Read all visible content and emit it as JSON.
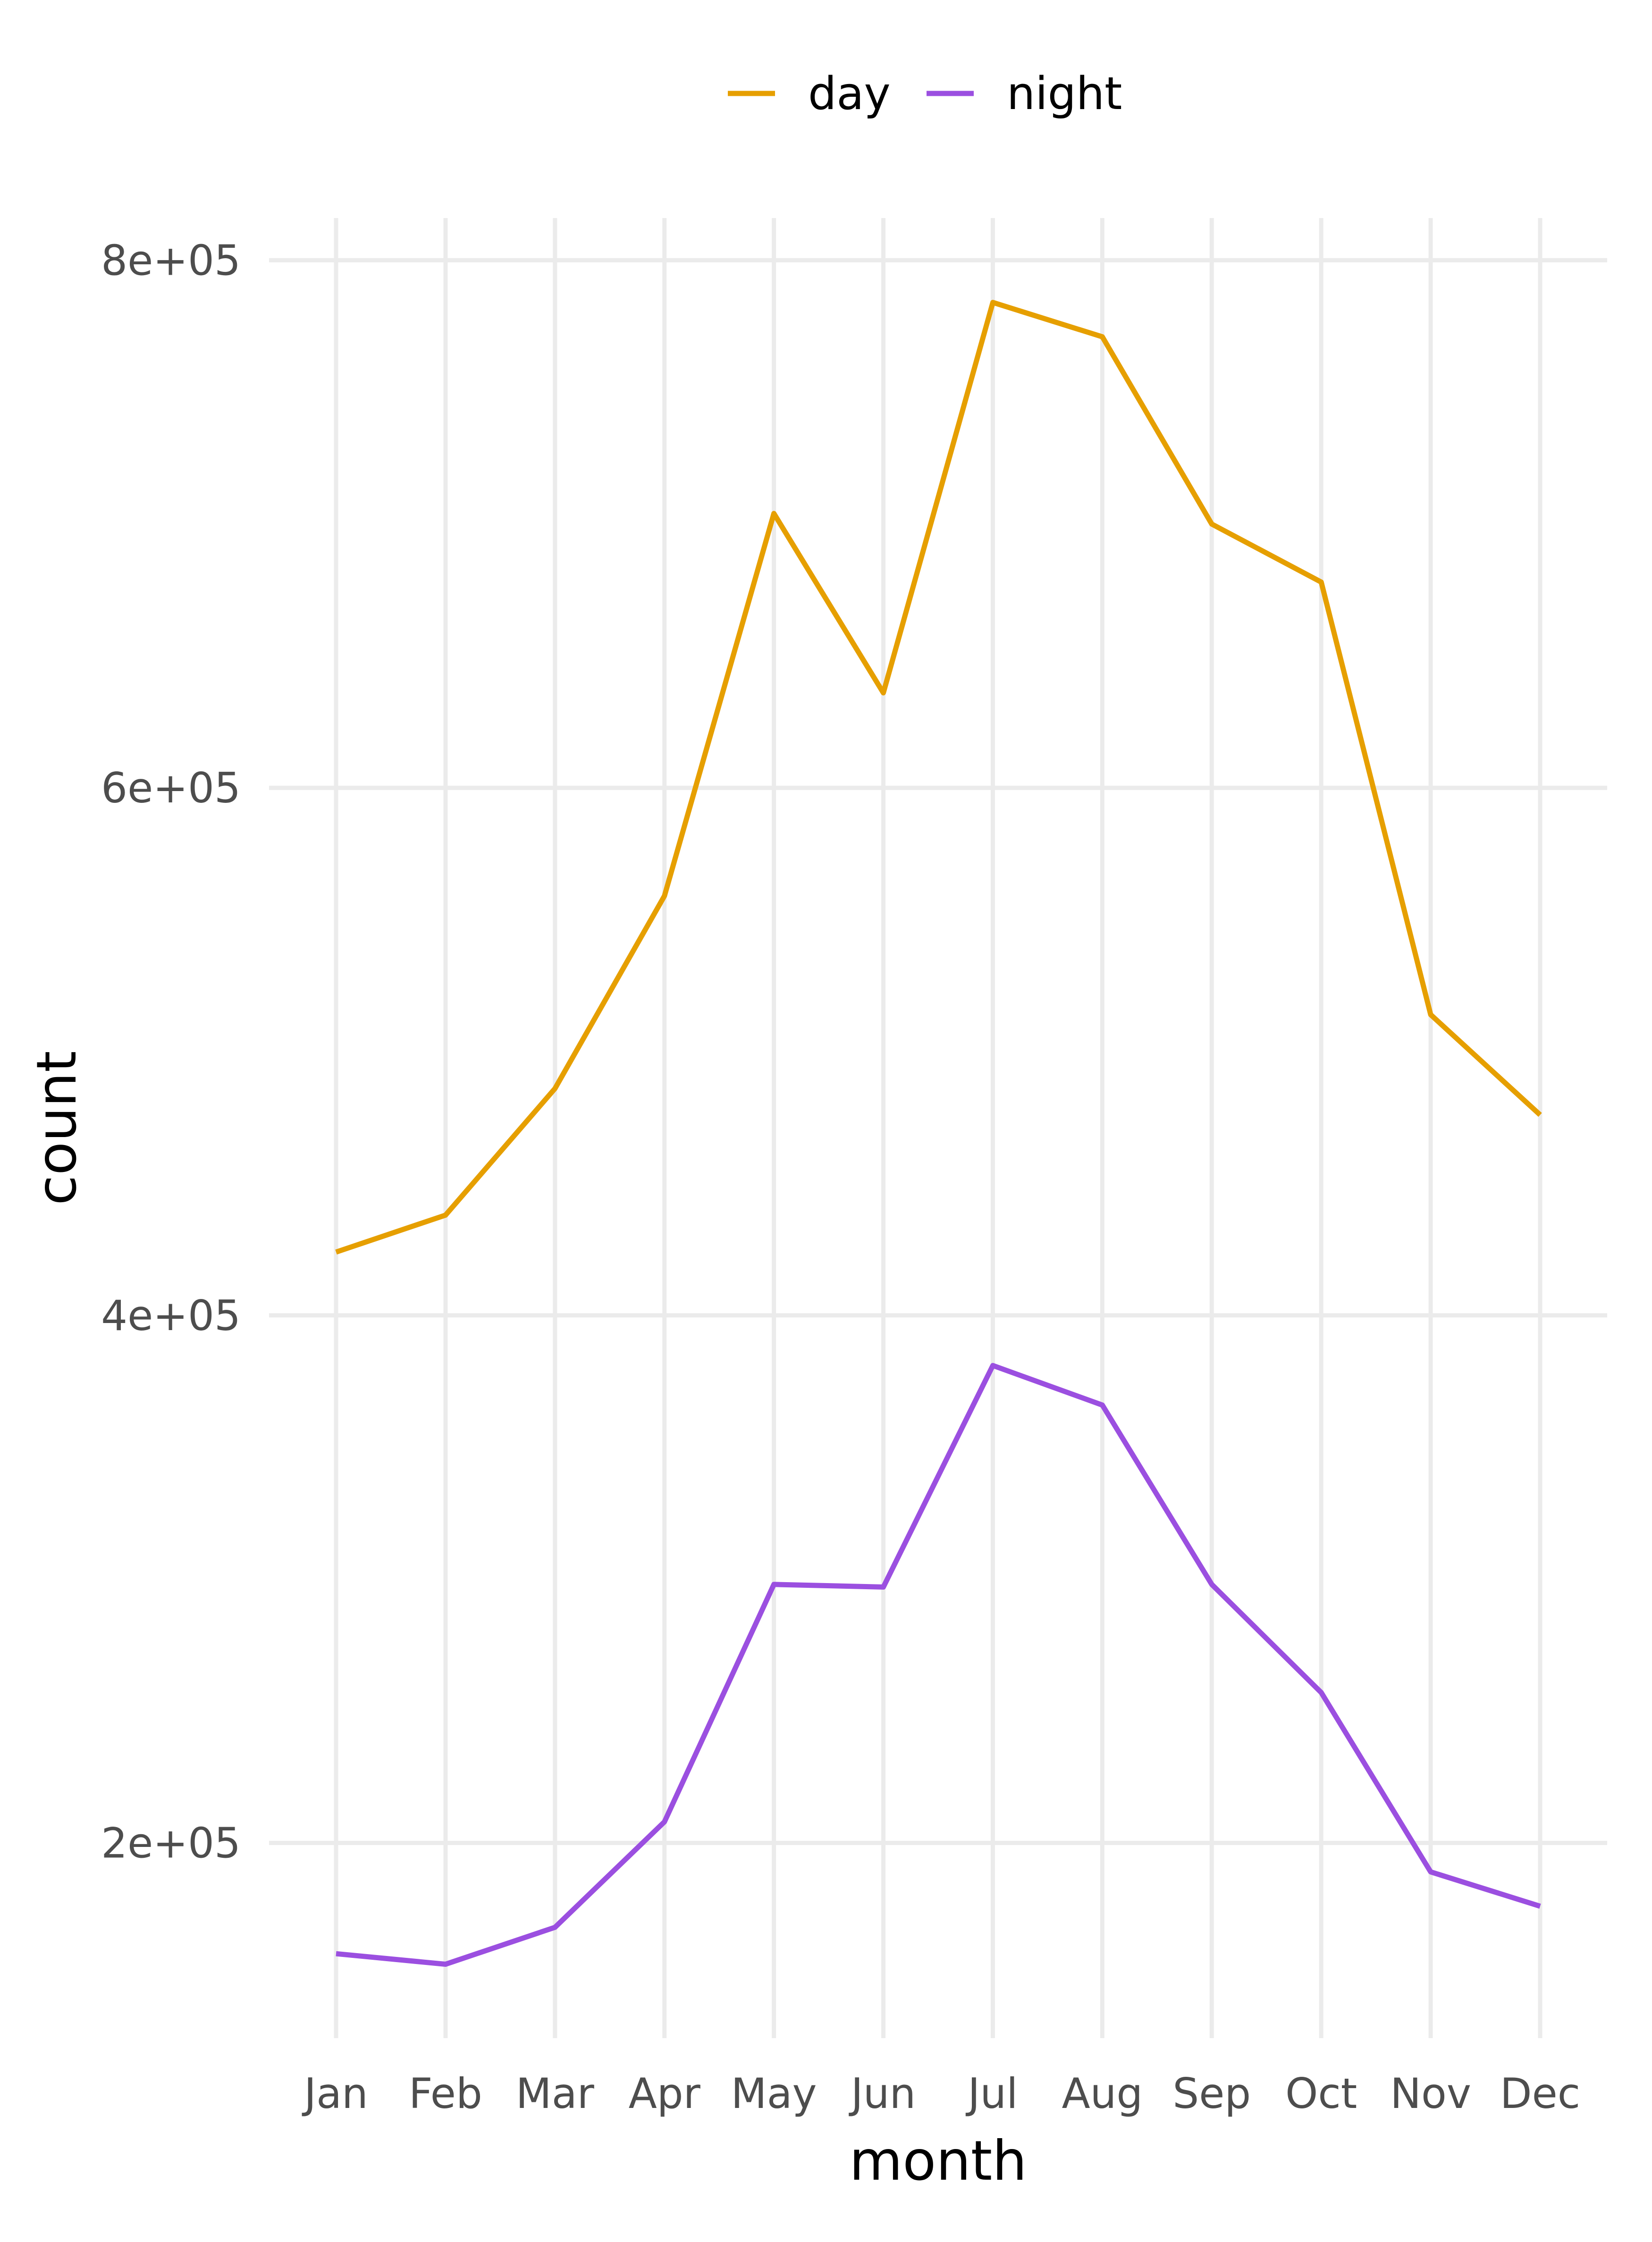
{
  "chart_data": {
    "type": "line",
    "categories": [
      "Jan",
      "Feb",
      "Mar",
      "Apr",
      "May",
      "Jun",
      "Jul",
      "Aug",
      "Sep",
      "Oct",
      "Nov",
      "Dec"
    ],
    "series": [
      {
        "name": "day",
        "color": "#E69F00",
        "values": [
          424000,
          438000,
          486000,
          559000,
          704000,
          636000,
          784000,
          771000,
          700000,
          678000,
          514000,
          476000
        ]
      },
      {
        "name": "night",
        "color": "#9B4FE0",
        "values": [
          158000,
          154000,
          168000,
          208000,
          298000,
          297000,
          381000,
          366000,
          298000,
          257000,
          189000,
          176000
        ]
      }
    ],
    "xlabel": "month",
    "ylabel": "count",
    "ylim": [
      126000,
      816000
    ],
    "yticks": [
      200000,
      400000,
      600000,
      800000
    ],
    "ytick_labels": [
      "2e+05",
      "4e+05",
      "6e+05",
      "8e+05"
    ],
    "legend_position": "top",
    "grid": true
  }
}
